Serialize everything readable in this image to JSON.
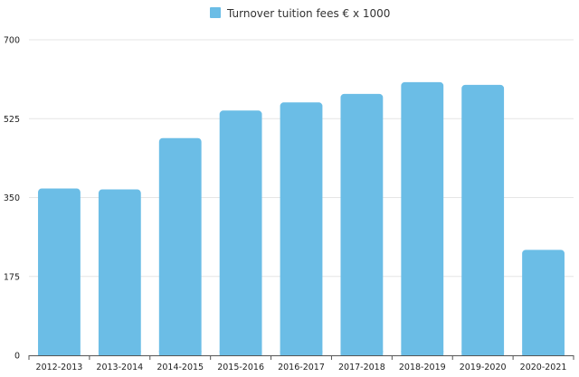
{
  "chart_data": {
    "type": "bar",
    "title": "",
    "xlabel": "",
    "ylabel": "",
    "legend": {
      "position": "top-center",
      "entries": [
        {
          "name": "Turnover tuition fees € x 1000",
          "color": "#6bbde6"
        }
      ]
    },
    "grid": true,
    "ylim": [
      0,
      700
    ],
    "yticks": [
      0,
      175,
      350,
      525,
      700
    ],
    "ytick_labels": [
      "0",
      "175",
      "350",
      "525",
      "700"
    ],
    "categories": [
      "2012-2013",
      "2013-2014",
      "2014-2015",
      "2015-2016",
      "2016-2017",
      "2017-2018",
      "2018-2019",
      "2019-2020",
      "2020-2021"
    ],
    "series": [
      {
        "name": "Turnover tuition fees € x 1000",
        "color": "#6bbde6",
        "values": [
          370,
          368,
          482,
          543,
          561,
          580,
          606,
          600,
          234
        ]
      }
    ]
  }
}
